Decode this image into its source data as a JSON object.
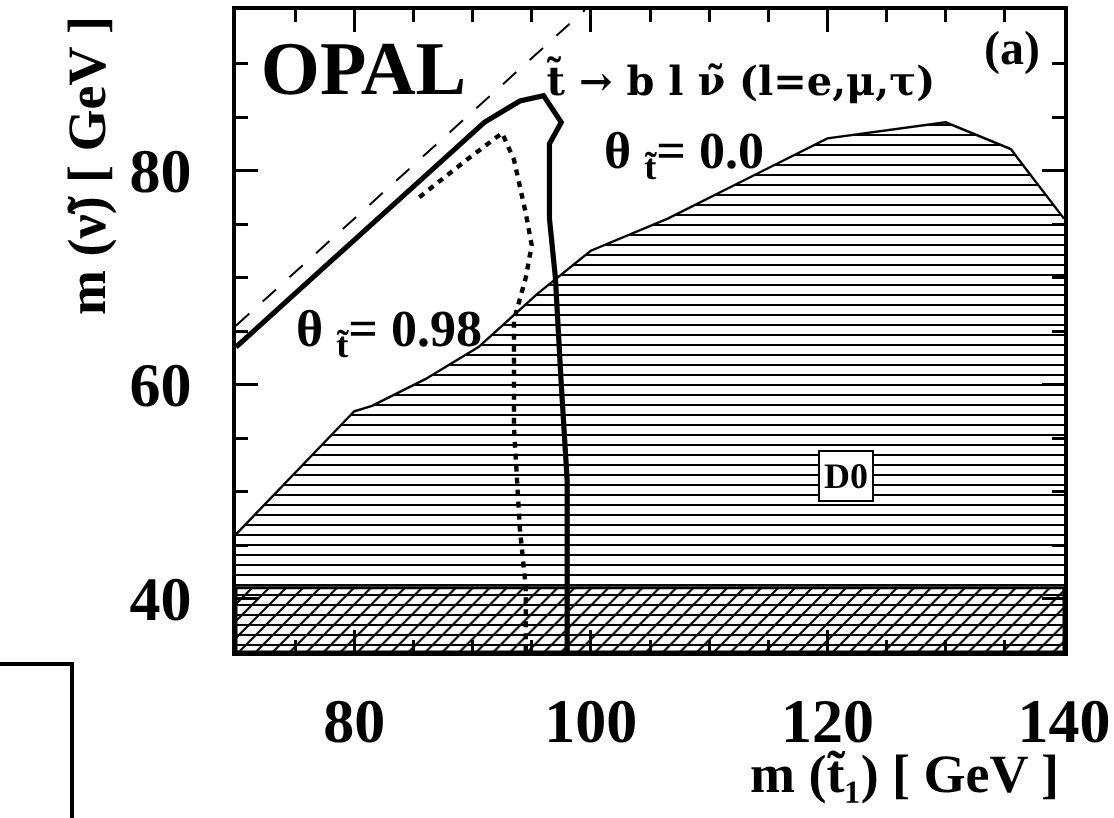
{
  "chart_data": {
    "type": "line",
    "title": "OPAL",
    "subtitle": "t̃ → b l ν̃ (l=e,μ,τ)",
    "xlabel": "m (t̃₁) [ GeV ]",
    "ylabel": "m (ν̃) [ GeV ]",
    "annotations": [
      "(a)",
      "θ $_{t̃}$= 0.0",
      "θ $_{t̃}$= 0.98",
      {
        "text": "D0",
        "x": 121.5,
        "y": 51.5
      }
    ],
    "xlim": [
      70,
      140
    ],
    "ylim": [
      35,
      95
    ],
    "xticks": [
      {
        "value": 75,
        "label": null
      },
      80,
      {
        "value": 85,
        "label": null
      },
      {
        "value": 90,
        "label": null
      },
      {
        "value": 95,
        "label": null
      },
      100,
      {
        "value": 105,
        "label": null
      },
      {
        "value": 110,
        "label": null
      },
      {
        "value": 115,
        "label": null
      },
      120,
      {
        "value": 125,
        "label": null
      },
      {
        "value": 130,
        "label": null
      },
      {
        "value": 135,
        "label": null
      },
      140
    ],
    "yticks": [
      40,
      {
        "value": 45,
        "label": null
      },
      {
        "value": 50,
        "label": null
      },
      {
        "value": 55,
        "label": null
      },
      60,
      {
        "value": 65,
        "label": null
      },
      {
        "value": 70,
        "label": null
      },
      {
        "value": 75,
        "label": null
      },
      80,
      {
        "value": 85,
        "label": null
      },
      {
        "value": 90,
        "label": null
      }
    ],
    "series": [
      {
        "type": "area",
        "color": "#000000",
        "x": [
          70,
          80,
          81.5,
          86,
          90.5,
          95.5,
          100,
          106.5,
          120,
          130,
          135.5,
          140
        ],
        "values": [
          46,
          57.5,
          58,
          60.5,
          63.5,
          68.5,
          72.5,
          75.5,
          83,
          84.5,
          82,
          75.5
        ]
      },
      {
        "color": "#000000",
        "line_style": "dashed",
        "x": [
          70,
          99.5
        ],
        "values": [
          65.5,
          95
        ]
      },
      {
        "color": "#000000",
        "line_style": "dotted",
        "x": [
          85.5,
          89.5,
          92.5,
          93.5,
          94.5,
          95,
          94.5,
          93.5,
          93.5,
          93.5,
          94,
          94.5,
          94.5
        ],
        "values": [
          77.5,
          81,
          83.5,
          81,
          76,
          73,
          70,
          66,
          61,
          56,
          46.5,
          41,
          35
        ]
      },
      {
        "color": "#000000",
        "line_style": "solid",
        "x": [
          70,
          78,
          86,
          91,
          94,
          96,
          97.5,
          96.5,
          96.5,
          97,
          97.5,
          98,
          98,
          98
        ],
        "values": [
          63.5,
          71.5,
          79.5,
          84.5,
          86.5,
          87,
          84.5,
          82.5,
          75.5,
          70,
          60,
          51,
          41,
          35
        ]
      }
    ],
    "bands": [
      {
        "axis": "y",
        "from": 35,
        "to": 41,
        "color": "#000000"
      }
    ],
    "grid": false,
    "marker": "none"
  }
}
